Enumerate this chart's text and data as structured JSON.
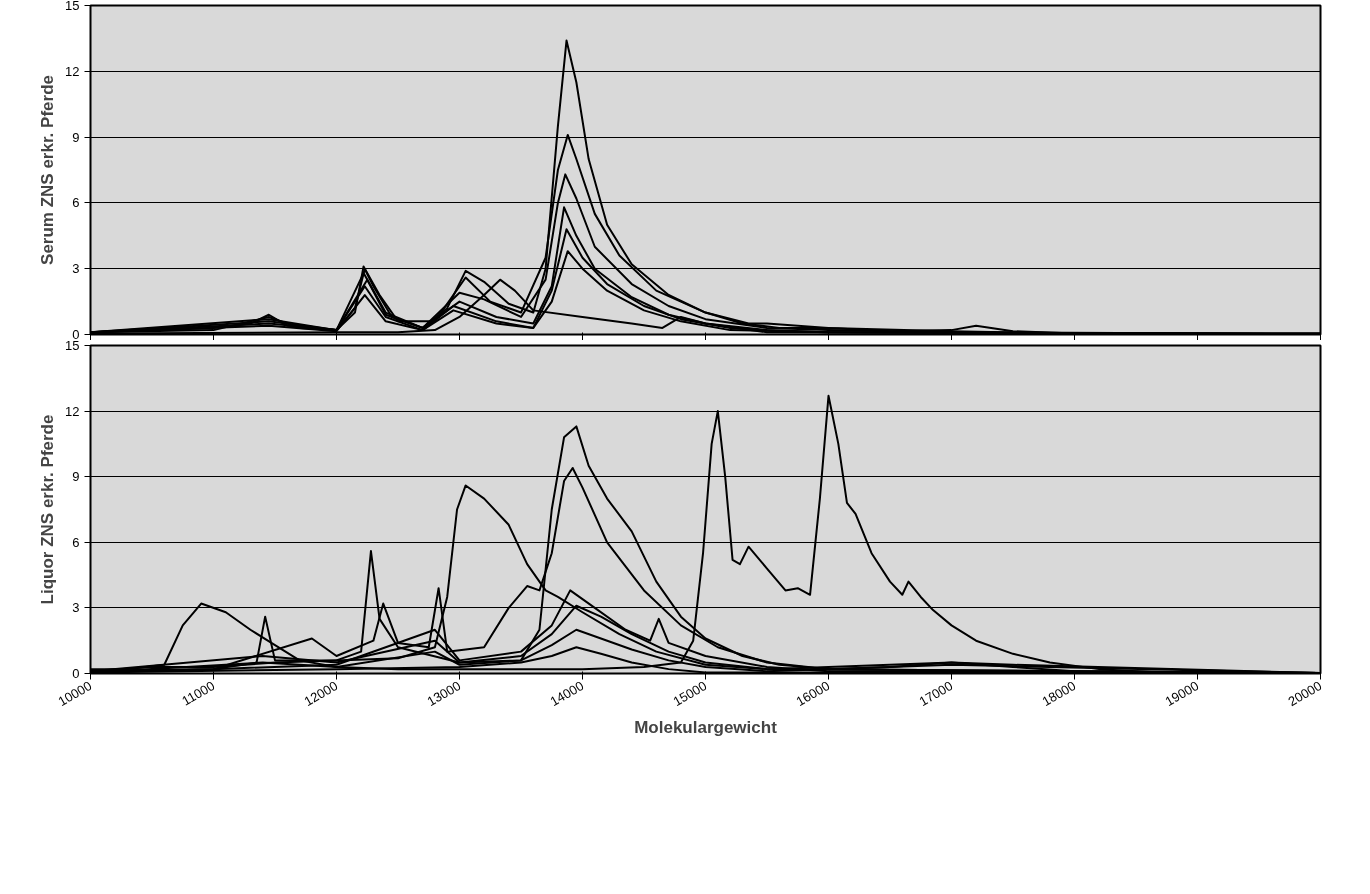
{
  "chart_data": [
    {
      "type": "line",
      "ylabel": "Serum ZNS erkr. Pferde",
      "xlim": [
        10000,
        20000
      ],
      "xticks": [
        10000,
        11000,
        12000,
        13000,
        14000,
        15000,
        16000,
        17000,
        18000,
        19000,
        20000
      ],
      "ylim": [
        0,
        15
      ],
      "yticks": [
        0,
        3,
        6,
        9,
        12,
        15
      ],
      "grid": "y",
      "tick_labels": "y",
      "series": [
        {
          "color": "#000000",
          "x": [
            10000,
            10600,
            11000,
            11300,
            11450,
            11600,
            12000,
            12150,
            12220,
            12300,
            12450,
            12700,
            12900,
            13050,
            13200,
            13400,
            13600,
            13700,
            13800,
            13870,
            13950,
            14050,
            14200,
            14400,
            14700,
            15000,
            15300,
            15600,
            16000,
            16500,
            17000,
            17200,
            17500,
            18000,
            19000,
            20000
          ],
          "values": [
            0.1,
            0.2,
            0.3,
            0.5,
            0.9,
            0.4,
            0.2,
            1.0,
            3.1,
            2.2,
            0.8,
            0.3,
            1.2,
            2.9,
            2.4,
            1.4,
            1.0,
            3.0,
            9.5,
            13.4,
            11.5,
            8.0,
            5.0,
            3.2,
            1.8,
            1.0,
            0.5,
            0.3,
            0.3,
            0.15,
            0.2,
            0.4,
            0.15,
            0.05,
            0.03,
            0.05
          ]
        },
        {
          "color": "#000000",
          "x": [
            10000,
            11000,
            11450,
            11700,
            12000,
            12150,
            12230,
            12350,
            12500,
            12800,
            13050,
            13250,
            13500,
            13700,
            13800,
            13880,
            13950,
            14100,
            14300,
            14600,
            15000,
            15350,
            15500,
            16000,
            17000,
            18000,
            20000
          ],
          "values": [
            0.1,
            0.2,
            0.8,
            0.3,
            0.2,
            1.2,
            3.0,
            1.8,
            0.6,
            0.6,
            2.6,
            1.5,
            1.0,
            3.5,
            7.5,
            9.1,
            8.0,
            5.5,
            3.6,
            2.0,
            1.0,
            0.5,
            0.5,
            0.3,
            0.15,
            0.05,
            0.03
          ]
        },
        {
          "color": "#000000",
          "x": [
            10000,
            11450,
            12000,
            12220,
            12400,
            12700,
            13000,
            13200,
            13500,
            13700,
            13800,
            13860,
            13950,
            14100,
            14400,
            14700,
            15000,
            15500,
            16000,
            17000,
            20000
          ],
          "values": [
            0.1,
            0.7,
            0.2,
            2.8,
            1.0,
            0.3,
            1.9,
            1.6,
            0.8,
            2.5,
            6.0,
            7.3,
            6.2,
            4.0,
            2.3,
            1.3,
            0.7,
            0.3,
            0.2,
            0.1,
            0.03
          ]
        },
        {
          "color": "#000000",
          "x": [
            10000,
            11450,
            12000,
            12250,
            12400,
            12700,
            13000,
            13300,
            13600,
            13750,
            13850,
            13950,
            14100,
            14400,
            14700,
            15000,
            15500,
            16000,
            20000
          ],
          "values": [
            0.1,
            0.6,
            0.2,
            2.5,
            0.9,
            0.3,
            1.5,
            0.8,
            0.5,
            2.2,
            5.8,
            4.5,
            3.0,
            1.7,
            0.9,
            0.5,
            0.2,
            0.1,
            0.03
          ]
        },
        {
          "color": "#000000",
          "x": [
            10000,
            11450,
            12000,
            12230,
            12400,
            12700,
            12950,
            13300,
            13600,
            13750,
            13870,
            14000,
            14200,
            14500,
            14800,
            15200,
            15600,
            16000,
            20000
          ],
          "values": [
            0.1,
            0.5,
            0.2,
            2.2,
            0.8,
            0.2,
            1.3,
            0.6,
            0.3,
            2.0,
            4.8,
            3.5,
            2.3,
            1.3,
            0.7,
            0.3,
            0.15,
            0.1,
            0.03
          ]
        },
        {
          "color": "#000000",
          "x": [
            10000,
            11450,
            12000,
            12230,
            12400,
            12700,
            12950,
            13300,
            13600,
            13750,
            13880,
            14000,
            14200,
            14500,
            14800,
            15200,
            16000,
            20000
          ],
          "values": [
            0.1,
            0.4,
            0.15,
            1.8,
            0.6,
            0.2,
            1.1,
            0.5,
            0.3,
            1.5,
            3.8,
            3.0,
            2.0,
            1.1,
            0.6,
            0.2,
            0.1,
            0.02
          ]
        },
        {
          "color": "#000000",
          "x": [
            10000,
            12000,
            12500,
            12800,
            13000,
            13200,
            13330,
            13450,
            13600,
            14000,
            14400,
            14650,
            14800,
            15000,
            15500,
            20000
          ],
          "values": [
            0.05,
            0.1,
            0.1,
            0.2,
            0.8,
            1.8,
            2.5,
            2.0,
            1.1,
            0.8,
            0.5,
            0.3,
            0.8,
            0.5,
            0.1,
            0.02
          ]
        }
      ]
    },
    {
      "type": "line",
      "ylabel": "Liquor ZNS erkr. Pferde",
      "xlabel": "Molekulargewicht",
      "xlim": [
        10000,
        20000
      ],
      "xticks": [
        10000,
        11000,
        12000,
        13000,
        14000,
        15000,
        16000,
        17000,
        18000,
        19000,
        20000
      ],
      "ylim": [
        0,
        15
      ],
      "yticks": [
        0,
        3,
        6,
        9,
        12,
        15
      ],
      "grid": "y",
      "series": [
        {
          "color": "#000000",
          "x": [
            10000,
            10300,
            10600,
            10750,
            10900,
            11100,
            11300,
            11500,
            11700,
            12000,
            12500,
            13000,
            13500,
            14000,
            14500,
            14800,
            14900,
            14980,
            15050,
            15100,
            15160,
            15220,
            15280,
            15350,
            15500,
            15650,
            15750,
            15850,
            15930,
            16000,
            16080,
            16150,
            16220,
            16350,
            16500,
            16600,
            16650,
            16750,
            16850,
            17000,
            17200,
            17500,
            17800,
            18200,
            18700,
            19500,
            20000
          ],
          "values": [
            0.2,
            0.2,
            0.4,
            2.2,
            3.2,
            2.8,
            2.0,
            1.3,
            0.6,
            0.3,
            0.2,
            0.2,
            0.2,
            0.2,
            0.3,
            0.5,
            1.5,
            5.5,
            10.5,
            12.0,
            9.0,
            5.2,
            5.0,
            5.8,
            4.8,
            3.8,
            3.9,
            3.6,
            8.0,
            12.7,
            10.5,
            7.8,
            7.3,
            5.5,
            4.2,
            3.6,
            4.2,
            3.5,
            2.9,
            2.2,
            1.5,
            0.9,
            0.5,
            0.2,
            0.05,
            0.02,
            0.02
          ]
        },
        {
          "color": "#000000",
          "x": [
            10000,
            10500,
            11000,
            11500,
            12000,
            12500,
            12800,
            12900,
            12980,
            13050,
            13200,
            13400,
            13550,
            13700,
            13800,
            14000,
            14300,
            14600,
            15000,
            15500,
            16000,
            16500,
            17000,
            17500,
            18000,
            20000
          ],
          "values": [
            0.1,
            0.3,
            0.3,
            0.5,
            0.6,
            0.7,
            1.2,
            3.5,
            7.5,
            8.6,
            8.0,
            6.8,
            5.0,
            3.8,
            3.5,
            2.8,
            1.8,
            1.0,
            0.4,
            0.2,
            0.2,
            0.3,
            0.5,
            0.3,
            0.1,
            0.02
          ]
        },
        {
          "color": "#000000",
          "x": [
            10000,
            11000,
            11350,
            11420,
            11500,
            12000,
            12200,
            12280,
            12350,
            12500,
            13000,
            13500,
            13650,
            13750,
            13850,
            13950,
            14050,
            14200,
            14400,
            14600,
            14800,
            15000,
            15300,
            15600,
            16000,
            17000,
            20000
          ],
          "values": [
            0.1,
            0.2,
            0.5,
            2.6,
            0.6,
            0.6,
            1.0,
            5.6,
            2.5,
            1.2,
            0.5,
            0.6,
            2.0,
            7.5,
            10.8,
            11.3,
            9.5,
            8.0,
            6.5,
            4.2,
            2.6,
            1.6,
            0.8,
            0.4,
            0.2,
            0.15,
            0.02
          ]
        },
        {
          "color": "#000000",
          "x": [
            10000,
            11000,
            11800,
            12000,
            12300,
            12380,
            12500,
            12750,
            12830,
            12900,
            13200,
            13400,
            13550,
            13650,
            13750,
            13850,
            13920,
            14000,
            14200,
            14500,
            14800,
            15100,
            15500,
            16000,
            17000,
            20000
          ],
          "values": [
            0.1,
            0.2,
            1.6,
            0.8,
            1.5,
            3.2,
            1.4,
            1.2,
            3.9,
            1.0,
            1.2,
            3.0,
            4.0,
            3.8,
            5.5,
            8.8,
            9.4,
            8.5,
            6.0,
            3.8,
            2.2,
            1.2,
            0.5,
            0.2,
            0.15,
            0.02
          ]
        },
        {
          "color": "#000000",
          "x": [
            10000,
            11000,
            12000,
            12800,
            13000,
            13500,
            13750,
            13900,
            14100,
            14350,
            14550,
            14620,
            14700,
            15000,
            15500,
            16000,
            17000,
            20000
          ],
          "values": [
            0.1,
            0.2,
            0.4,
            2.0,
            0.6,
            1.0,
            2.2,
            3.8,
            3.0,
            2.0,
            1.5,
            2.5,
            1.4,
            0.8,
            0.3,
            0.1,
            0.1,
            0.02
          ]
        },
        {
          "color": "#000000",
          "x": [
            10000,
            11400,
            12000,
            12800,
            13000,
            13500,
            13750,
            13950,
            14150,
            14400,
            14700,
            15000,
            15500,
            16500,
            17000,
            17500,
            20000
          ],
          "values": [
            0.1,
            0.8,
            0.5,
            1.5,
            0.5,
            0.8,
            1.8,
            3.1,
            2.6,
            1.8,
            1.0,
            0.5,
            0.2,
            0.4,
            0.5,
            0.4,
            0.02
          ]
        },
        {
          "color": "#000000",
          "x": [
            10000,
            11400,
            12000,
            12800,
            13000,
            13500,
            13750,
            13950,
            14150,
            14400,
            14700,
            15000,
            15500,
            16500,
            17000,
            20000
          ],
          "values": [
            0.05,
            0.5,
            0.3,
            1.0,
            0.4,
            0.6,
            1.3,
            2.0,
            1.6,
            1.1,
            0.6,
            0.3,
            0.1,
            0.3,
            0.4,
            0.02
          ]
        },
        {
          "color": "#000000",
          "x": [
            10000,
            12000,
            13000,
            13500,
            13750,
            13950,
            14150,
            14400,
            14700,
            15000,
            16000,
            20000
          ],
          "values": [
            0.05,
            0.2,
            0.3,
            0.5,
            0.8,
            1.2,
            0.9,
            0.5,
            0.2,
            0.05,
            0.05,
            0.02
          ]
        }
      ]
    }
  ]
}
